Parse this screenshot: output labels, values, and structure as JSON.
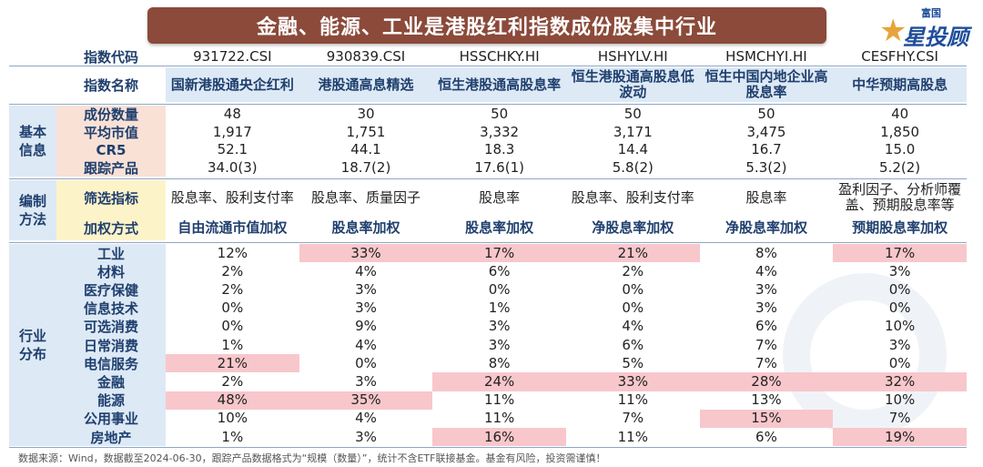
{
  "title": "金融、能源、工业是港股红利指数成份股集中行业",
  "logo": {
    "small": "富国",
    "big": "星投顾"
  },
  "header": {
    "code_label": "指数代码",
    "name_label": "指数名称",
    "codes": [
      "931722.CSI",
      "930839.CSI",
      "HSSCHKY.HI",
      "HSHYLV.HI",
      "HSMCHYI.HI",
      "CESFHY.CSI"
    ],
    "names": [
      "国新港股通央企红利",
      "港股通高息精选",
      "恒生港股通高股息率",
      "恒生港股通高股息低波动",
      "恒生中国内地企业高股息率",
      "中华预期高股息"
    ]
  },
  "groups": {
    "basic": "基本\n信息",
    "method": "编制\n方法",
    "industry": "行业\n分布"
  },
  "basic_rows": [
    {
      "label": "成份数量",
      "values": [
        "48",
        "30",
        "50",
        "50",
        "50",
        "40"
      ]
    },
    {
      "label": "平均市值",
      "values": [
        "1,917",
        "1,751",
        "3,332",
        "3,171",
        "3,475",
        "1,850"
      ]
    },
    {
      "label": "CR5",
      "values": [
        "52.1",
        "44.1",
        "18.3",
        "14.4",
        "16.7",
        "15.0"
      ]
    },
    {
      "label": "跟踪产品",
      "values": [
        "34.0(3)",
        "18.7(2)",
        "17.6(1)",
        "5.8(2)",
        "5.3(2)",
        "5.2(2)"
      ]
    }
  ],
  "method_rows": [
    {
      "label": "筛选指标",
      "values": [
        "股息率、股利支付率",
        "股息率、质量因子",
        "股息率",
        "股息率、股利支付率",
        "股息率",
        "盈利因子、分析师覆盖、预期股息率等"
      ]
    },
    {
      "label": "加权方式",
      "values": [
        "自由流通市值加权",
        "股息率加权",
        "股息率加权",
        "净股息率加权",
        "净股息率加权",
        "预期股息率加权"
      ]
    }
  ],
  "industry_rows": [
    {
      "label": "工业",
      "values": [
        "12%",
        "33%",
        "17%",
        "21%",
        "8%",
        "17%"
      ]
    },
    {
      "label": "材料",
      "values": [
        "2%",
        "4%",
        "6%",
        "2%",
        "4%",
        "3%"
      ]
    },
    {
      "label": "医疗保健",
      "values": [
        "2%",
        "3%",
        "0%",
        "0%",
        "3%",
        "0%"
      ]
    },
    {
      "label": "信息技术",
      "values": [
        "0%",
        "3%",
        "1%",
        "0%",
        "3%",
        "0%"
      ]
    },
    {
      "label": "可选消费",
      "values": [
        "0%",
        "9%",
        "3%",
        "4%",
        "6%",
        "10%"
      ]
    },
    {
      "label": "日常消费",
      "values": [
        "1%",
        "4%",
        "3%",
        "6%",
        "7%",
        "3%"
      ]
    },
    {
      "label": "电信服务",
      "values": [
        "21%",
        "0%",
        "8%",
        "5%",
        "7%",
        "0%"
      ]
    },
    {
      "label": "金融",
      "values": [
        "2%",
        "3%",
        "24%",
        "33%",
        "28%",
        "32%"
      ]
    },
    {
      "label": "能源",
      "values": [
        "48%",
        "35%",
        "11%",
        "11%",
        "13%",
        "10%"
      ]
    },
    {
      "label": "公用事业",
      "values": [
        "10%",
        "4%",
        "11%",
        "7%",
        "15%",
        "7%"
      ]
    },
    {
      "label": "房地产",
      "values": [
        "1%",
        "3%",
        "16%",
        "11%",
        "6%",
        "19%"
      ]
    }
  ],
  "footer": "数据来源：Wind，数据截至2024-06-30，跟踪产品数据格式为“规模（数量）”，统计不含ETF联接基金。基金有风险，投资需谨慎！",
  "colors": {
    "banner": "#8b4a3a",
    "highlight": "#f8c7cb",
    "header_bg": "#dde9f5"
  }
}
